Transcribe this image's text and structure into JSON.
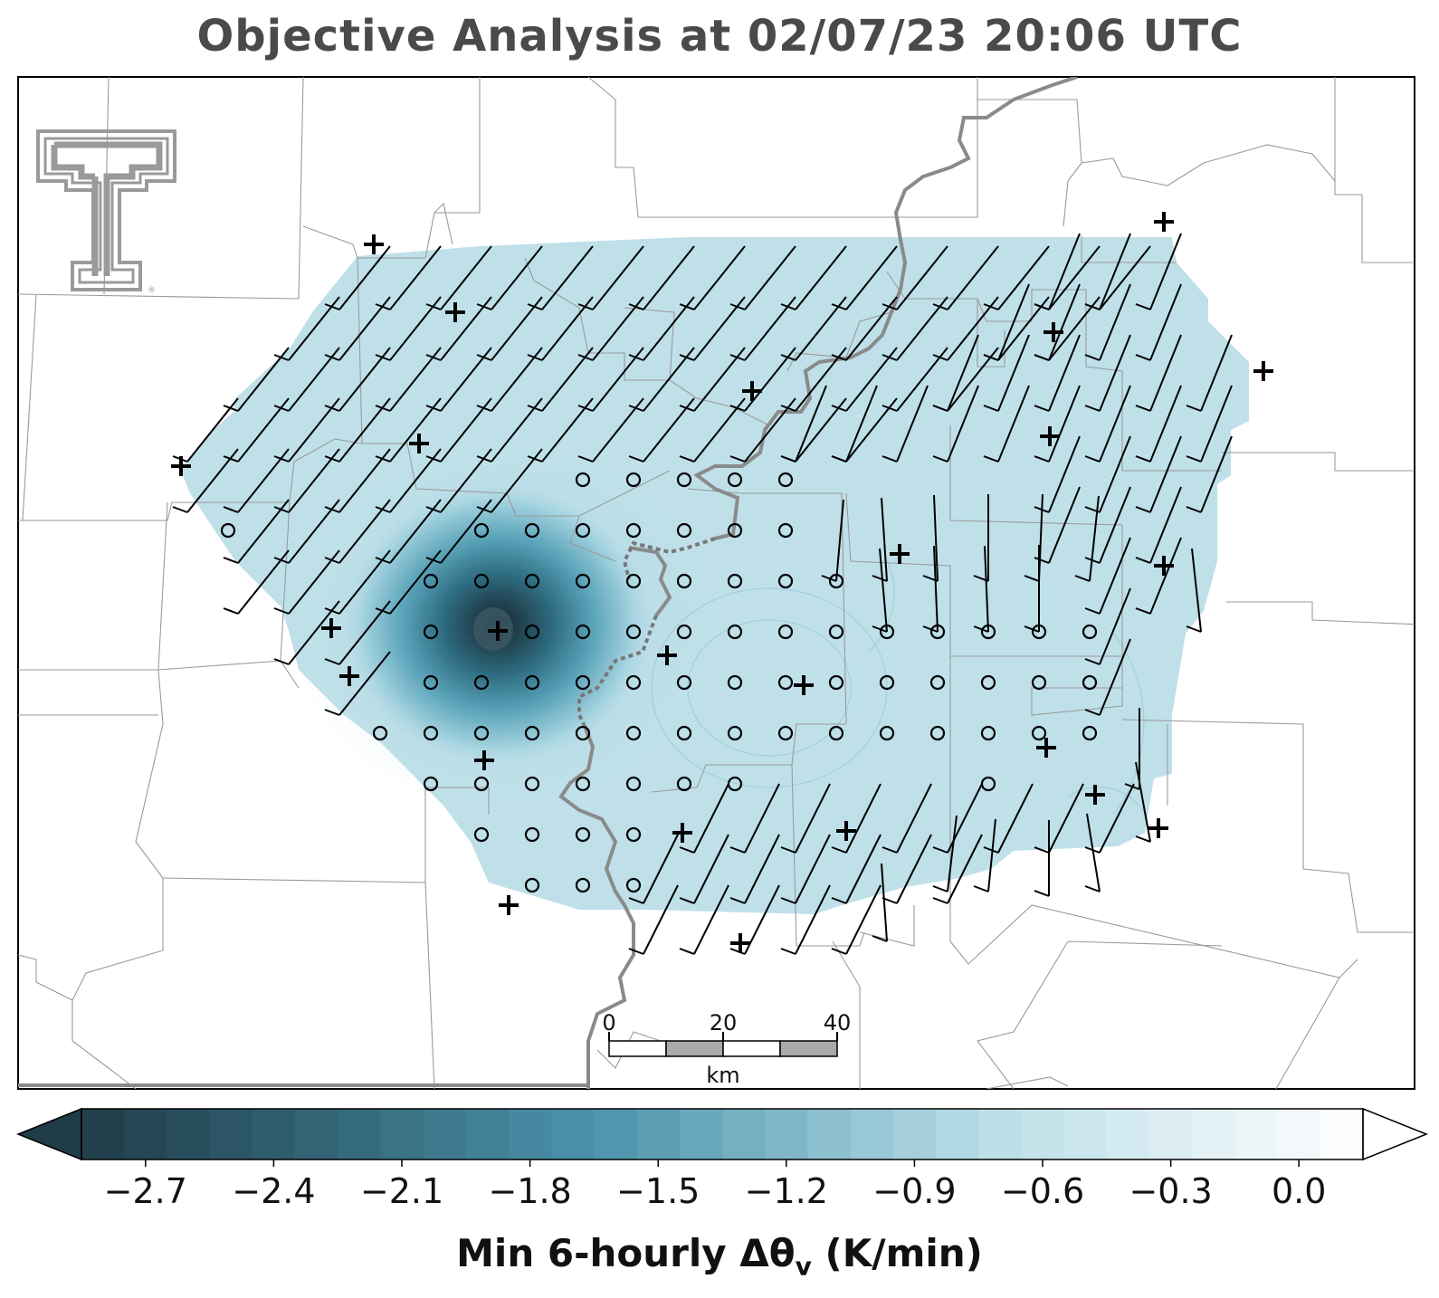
{
  "title": "Objective Analysis at 02/07/23 20:06 UTC",
  "colorbar": {
    "label": "Min 6-hourly Δθ",
    "label_sub": "v",
    "label_units": " (K/min)",
    "ticks": [
      "−2.7",
      "−2.4",
      "−2.1",
      "−1.8",
      "−1.5",
      "−1.2",
      "−0.9",
      "−0.6",
      "−0.3",
      "0.0"
    ],
    "tick_values": [
      -2.7,
      -2.4,
      -2.1,
      -1.8,
      -1.5,
      -1.2,
      -0.9,
      -0.6,
      -0.3,
      0.0
    ],
    "range": [
      -2.85,
      0.15
    ],
    "color_dark": "#1f3c48",
    "color_mid": "#4a93ab",
    "color_light": "#bde0e9",
    "color_white": "#ffffff"
  },
  "scale_bar": {
    "labels": [
      "0",
      "20",
      "40"
    ],
    "unit": "km"
  },
  "field": {
    "min_value": -2.8,
    "background_value": -0.75
  },
  "colors": {
    "analysis_fill": "#bfe0e9",
    "state_border": "#888888",
    "county_border": "#9a9a9a",
    "barb": "#000000",
    "logo_gray": "#999999"
  }
}
